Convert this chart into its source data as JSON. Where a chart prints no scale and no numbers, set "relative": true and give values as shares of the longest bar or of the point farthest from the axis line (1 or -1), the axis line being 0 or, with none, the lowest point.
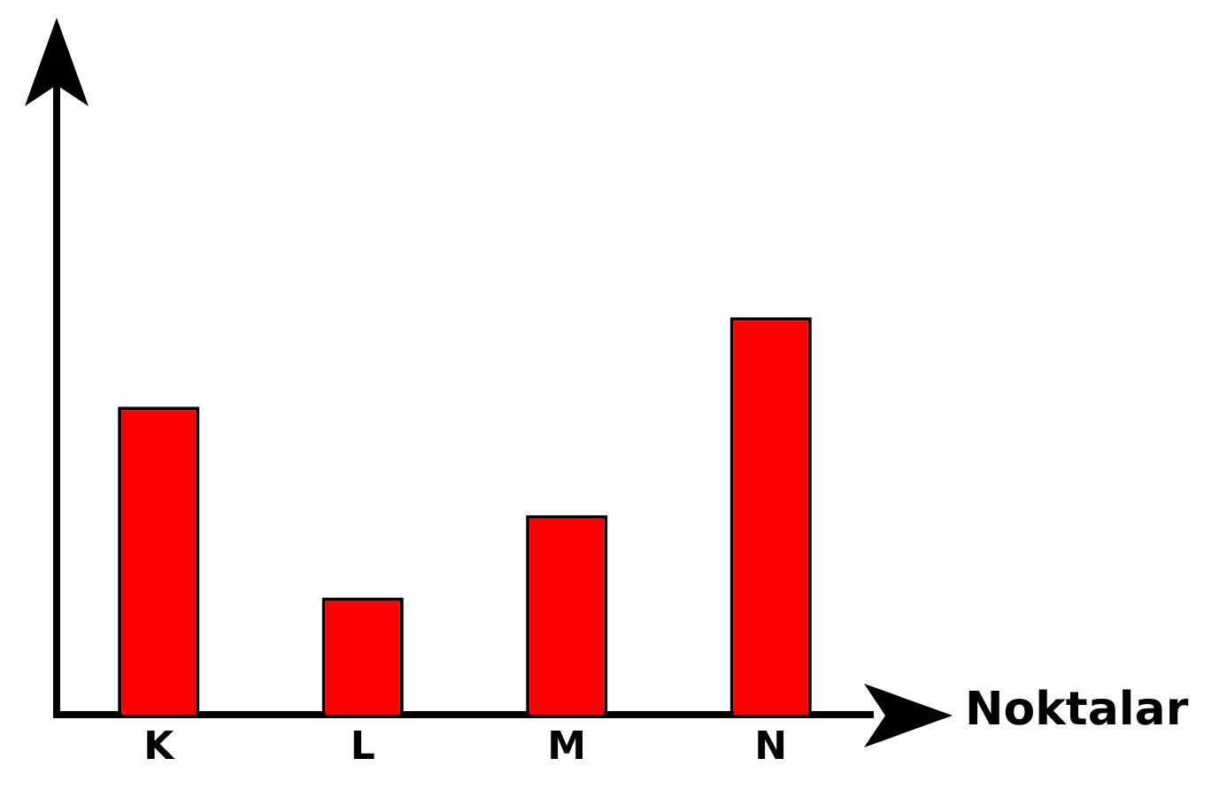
{
  "chart_data": {
    "type": "bar",
    "xlabel": "Noktalar",
    "categories": [
      "K",
      "L",
      "M",
      "N"
    ],
    "values": [
      0.775,
      0.295,
      0.502,
      1
    ],
    "color": "#ff0000",
    "relative": true,
    "grid": false,
    "legend": false
  }
}
